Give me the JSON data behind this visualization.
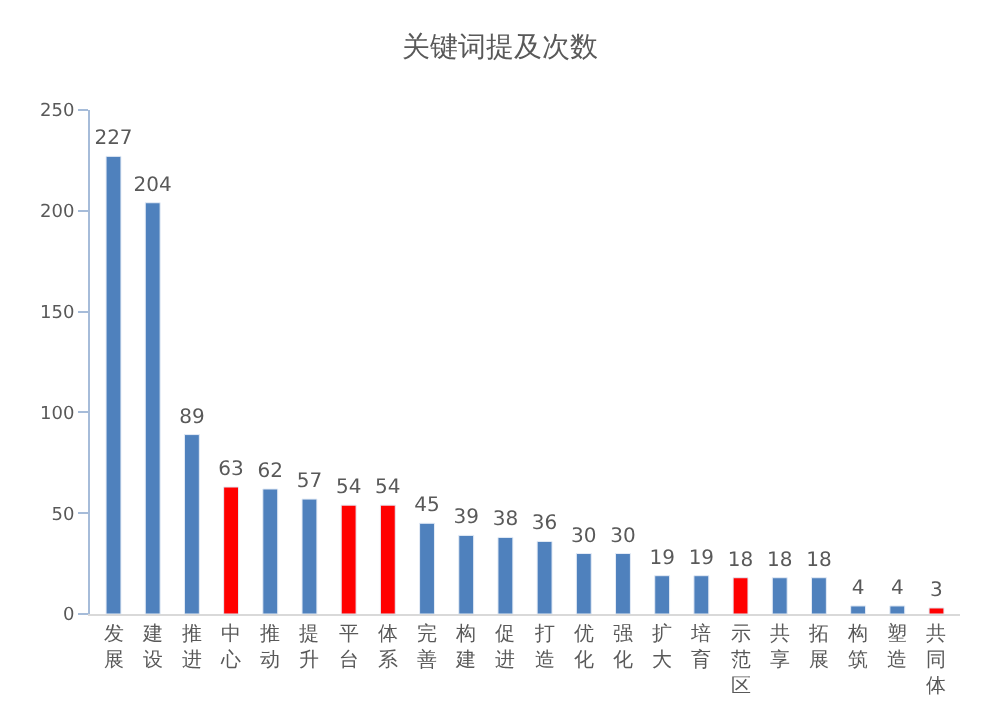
{
  "chart_data": {
    "type": "bar",
    "title": "关键词提及次数",
    "categories": [
      "发展",
      "建设",
      "推进",
      "中心",
      "推动",
      "提升",
      "平台",
      "体系",
      "完善",
      "构建",
      "促进",
      "打造",
      "优化",
      "强化",
      "扩大",
      "培育",
      "示范区",
      "共享",
      "拓展",
      "构筑",
      "塑造",
      "共同体"
    ],
    "values": [
      227,
      204,
      89,
      63,
      62,
      57,
      54,
      54,
      45,
      39,
      38,
      36,
      30,
      30,
      19,
      19,
      18,
      18,
      18,
      4,
      4,
      3
    ],
    "colors": [
      "#4f81bd",
      "#4f81bd",
      "#4f81bd",
      "#ff0000",
      "#4f81bd",
      "#4f81bd",
      "#ff0000",
      "#ff0000",
      "#4f81bd",
      "#4f81bd",
      "#4f81bd",
      "#4f81bd",
      "#4f81bd",
      "#4f81bd",
      "#4f81bd",
      "#4f81bd",
      "#ff0000",
      "#4f81bd",
      "#4f81bd",
      "#4f81bd",
      "#4f81bd",
      "#ff0000"
    ],
    "ylim": [
      0,
      250
    ],
    "yticks": [
      0,
      50,
      100,
      150,
      200,
      250
    ],
    "legend": false,
    "data_labels": true
  }
}
